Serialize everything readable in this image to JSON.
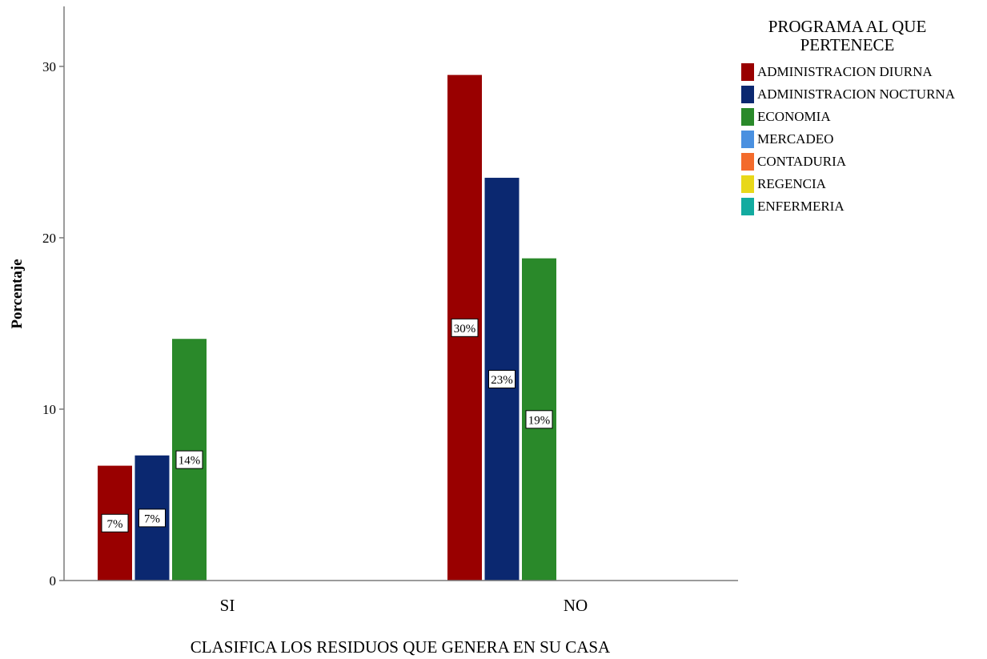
{
  "chart_data": {
    "type": "bar",
    "title": "",
    "xlabel": "CLASIFICA LOS RESIDUOS QUE GENERA EN SU CASA",
    "ylabel": "Porcentaje",
    "ylim": [
      0,
      33.5
    ],
    "yticks": [
      0,
      10,
      20,
      30
    ],
    "categories": [
      "SI",
      "NO"
    ],
    "grid": false,
    "legend": {
      "title": "PROGRAMA AL QUE PERTENECE",
      "placement": "right"
    },
    "series": [
      {
        "name": "ADMINISTRACION DIURNA",
        "color": "#990000",
        "values": [
          6.7,
          29.5
        ],
        "labels": [
          "7%",
          "30%"
        ]
      },
      {
        "name": "ADMINISTRACION NOCTURNA",
        "color": "#0b2870",
        "values": [
          7.3,
          23.5
        ],
        "labels": [
          "7%",
          "23%"
        ]
      },
      {
        "name": "ECONOMIA",
        "color": "#2a892a",
        "values": [
          14.1,
          18.8
        ],
        "labels": [
          "14%",
          "19%"
        ]
      },
      {
        "name": "MERCADEO",
        "color": "#4a90e0",
        "values": [
          0,
          0
        ],
        "labels": [
          "",
          ""
        ]
      },
      {
        "name": "CONTADURIA",
        "color": "#f36b2c",
        "values": [
          0,
          0
        ],
        "labels": [
          "",
          ""
        ]
      },
      {
        "name": "REGENCIA",
        "color": "#e8d81a",
        "values": [
          0,
          0
        ],
        "labels": [
          "",
          ""
        ]
      },
      {
        "name": "ENFERMERIA",
        "color": "#13aba0",
        "values": [
          0,
          0
        ],
        "labels": [
          "",
          ""
        ]
      }
    ]
  }
}
